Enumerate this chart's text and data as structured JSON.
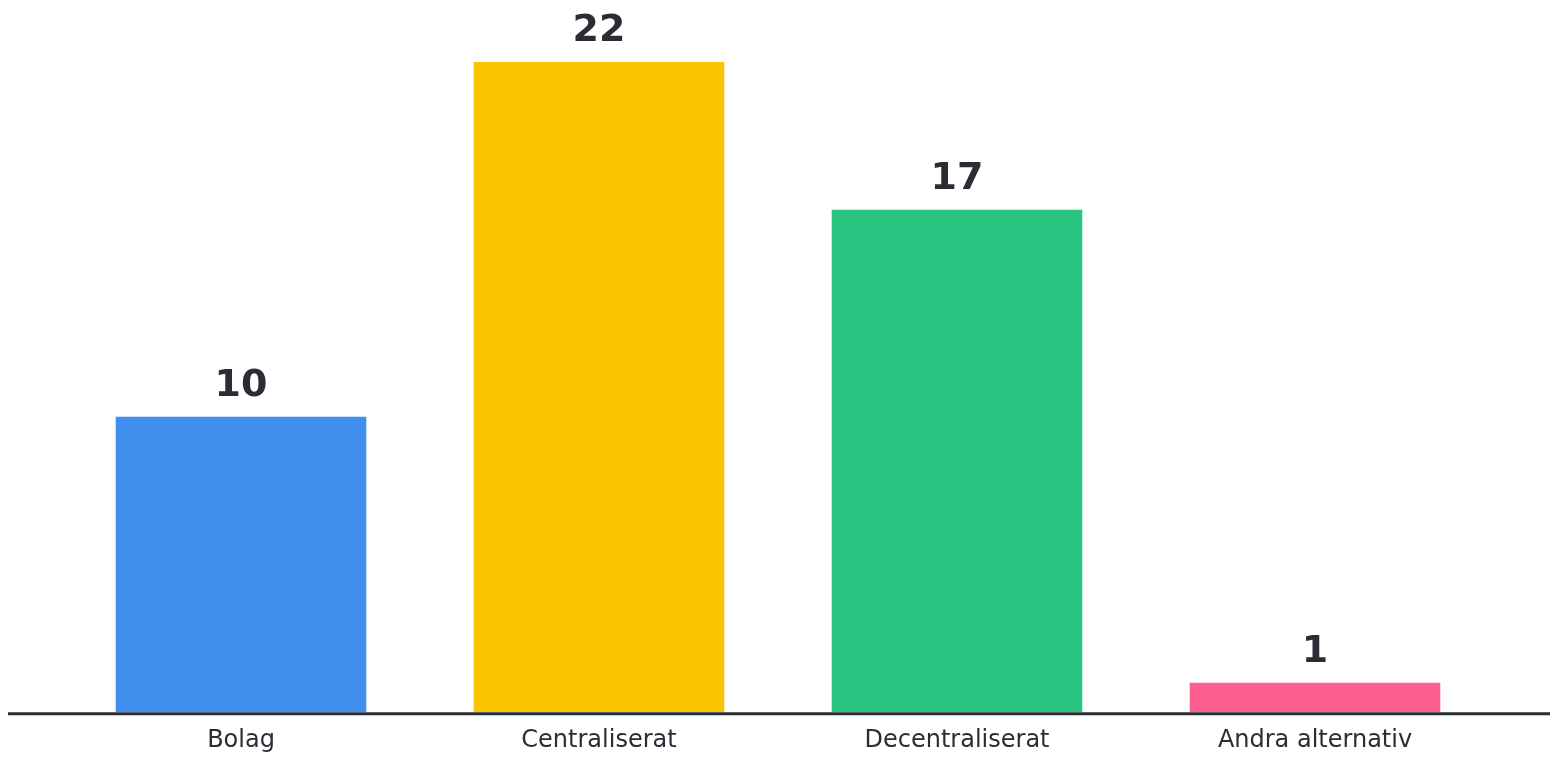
{
  "chart_data": {
    "type": "bar",
    "categories": [
      "Bolag",
      "Centraliserat",
      "Decentraliserat",
      "Andra alternativ"
    ],
    "values": [
      10,
      22,
      17,
      1
    ],
    "colors": [
      "#4190ef",
      "#fbc400",
      "#29c47f",
      "#fd5e8f"
    ],
    "data_labels": true,
    "grid": false,
    "legend": false
  }
}
